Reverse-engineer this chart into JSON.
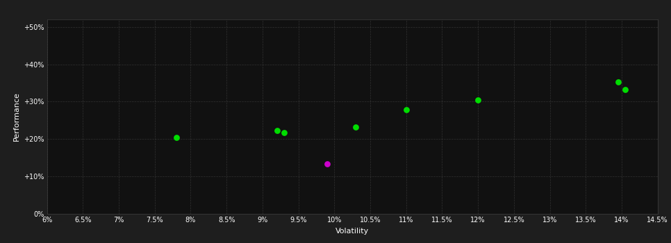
{
  "xlabel": "Volatility",
  "ylabel": "Performance",
  "background_color": "#1e1e1e",
  "plot_bg_color": "#111111",
  "grid_color": "#404040",
  "text_color": "#ffffff",
  "points_green": [
    [
      0.078,
      0.205
    ],
    [
      0.092,
      0.222
    ],
    [
      0.093,
      0.218
    ],
    [
      0.103,
      0.233
    ],
    [
      0.11,
      0.278
    ],
    [
      0.12,
      0.305
    ],
    [
      0.1395,
      0.352
    ],
    [
      0.1405,
      0.333
    ]
  ],
  "points_magenta": [
    [
      0.099,
      0.133
    ]
  ],
  "xlim": [
    0.06,
    0.145
  ],
  "ylim": [
    0.0,
    0.52
  ],
  "xticks": [
    0.06,
    0.065,
    0.07,
    0.075,
    0.08,
    0.085,
    0.09,
    0.095,
    0.1,
    0.105,
    0.11,
    0.115,
    0.12,
    0.125,
    0.13,
    0.135,
    0.14,
    0.145
  ],
  "yticks": [
    0.0,
    0.1,
    0.2,
    0.3,
    0.4,
    0.5
  ],
  "ytick_labels": [
    "0%",
    "+10%",
    "+20%",
    "+30%",
    "+40%",
    "+50%"
  ],
  "xtick_labels": [
    "6%",
    "6.5%",
    "7%",
    "7.5%",
    "8%",
    "8.5%",
    "9%",
    "9.5%",
    "10%",
    "10.5%",
    "11%",
    "11.5%",
    "12%",
    "12.5%",
    "13%",
    "13.5%",
    "14%",
    "14.5%"
  ],
  "marker_size": 40,
  "green_color": "#00dd00",
  "magenta_color": "#cc00cc"
}
